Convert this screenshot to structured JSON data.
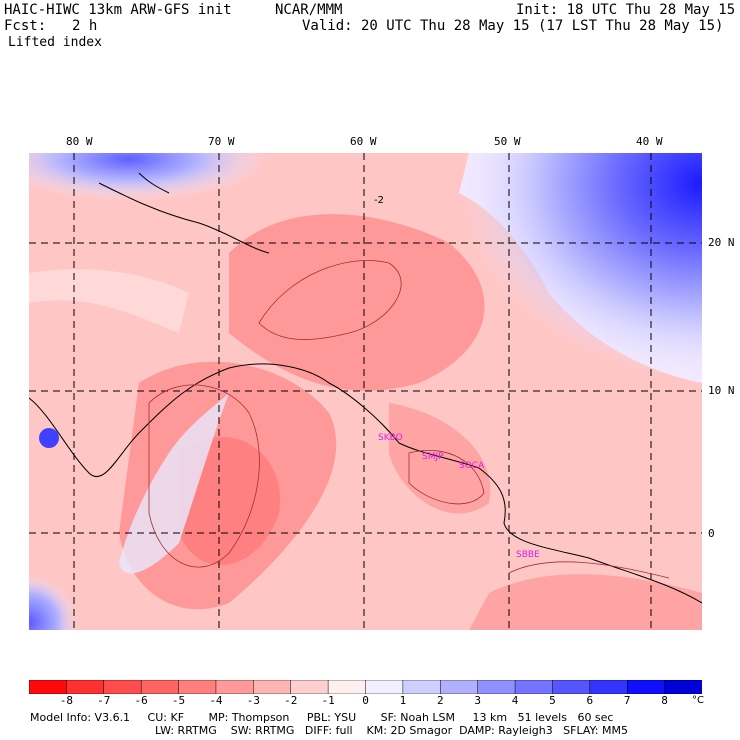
{
  "header": {
    "model": "HAIC-HIWC 13km ARW-GFS init",
    "org": "NCAR/MMM",
    "init": "Init: 18 UTC Thu 28 May 15",
    "fcst_label": "Fcst:",
    "fcst_value": "2 h",
    "valid": "Valid: 20 UTC Thu 28 May 15 (17 LST Thu 28 May 15)",
    "field": "Lifted index"
  },
  "map": {
    "lon_labels": [
      "80 W",
      "70 W",
      "60 W",
      "50 W",
      "40 W"
    ],
    "lat_labels": [
      "20 N",
      "10 N",
      "0"
    ],
    "contour_label": "-2",
    "stations": [
      "SKBO",
      "SMJP",
      "SOCA",
      "SBBE"
    ]
  },
  "colorbar": {
    "ticks": [
      "-8",
      "-7",
      "-6",
      "-5",
      "-4",
      "-3",
      "-2",
      "-1",
      "0",
      "1",
      "2",
      "3",
      "4",
      "5",
      "6",
      "7",
      "8"
    ],
    "unit": "°C",
    "colors": [
      "#ff0a0a",
      "#ff3030",
      "#ff4c4c",
      "#ff6464",
      "#ff7e7e",
      "#ff9a9a",
      "#ffb4b4",
      "#ffcfcf",
      "#fff0f0",
      "#f0f0ff",
      "#cfcfff",
      "#b0b0ff",
      "#9090ff",
      "#7474ff",
      "#5656ff",
      "#3434ff",
      "#1010ff",
      "#0000d8"
    ]
  },
  "footer": {
    "line1": "Model Info: V3.6.1     CU: KF       MP: Thompson     PBL: YSU       SF: Noah LSM     13 km   51 levels   60 sec",
    "line2": "LW: RRTMG    SW: RRTMG   DIFF: full    KM: 2D Smagor  DAMP: Rayleigh3   SFLAY: MM5"
  }
}
